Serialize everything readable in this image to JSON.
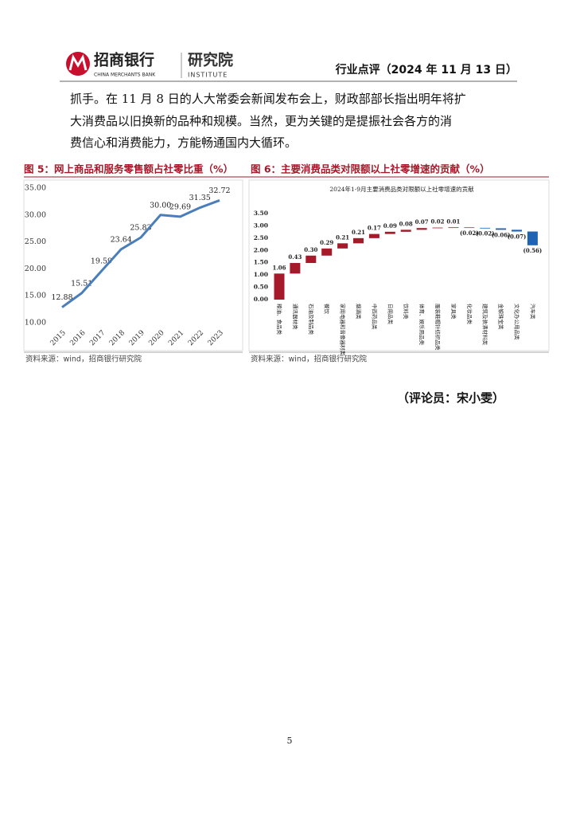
{
  "header": {
    "logo_name": "招商银行",
    "logo_sub": "CHINA MERCHANTS BANK",
    "institute": "研究院",
    "institute_sub": "INSTITUTE",
    "report": "行业点评（2024 年 11 月 13 日）"
  },
  "body": [
    "抓手。在 11 月 8 日的人大常委会新闻发布会上，财政部部长指出明年将扩",
    "大消费品以旧换新的品种和规模。当然，更为关键的是提振社会各方的消",
    "费信心和消费能力，方能畅通国内大循环。"
  ],
  "chart_data": [
    {
      "type": "line",
      "title": "图 5：网上商品和服务零售额占社零比重（%）",
      "categories": [
        "2015",
        "2016",
        "2017",
        "2018",
        "2019",
        "2020",
        "2021",
        "2022",
        "2023"
      ],
      "values": [
        12.88,
        15.51,
        19.59,
        23.64,
        25.83,
        30.0,
        29.69,
        31.35,
        32.72
      ],
      "value_labels": [
        "12.88",
        "15.51",
        "19.59",
        "23.64",
        "25.83",
        "30.00",
        "29.69",
        "31.35",
        "32.72"
      ],
      "color": "#4a7ebb",
      "grid": false,
      "ylim": [
        10,
        35
      ],
      "yticks": [
        {
          "value": 10,
          "label": "10.00"
        },
        {
          "value": 15,
          "label": "15.00"
        },
        {
          "value": 20,
          "label": "20.00"
        },
        {
          "value": 25,
          "label": "25.00"
        },
        {
          "value": 30,
          "label": "30.00"
        },
        {
          "value": 35,
          "label": "35.00"
        }
      ],
      "source": "资料来源：wind，招商银行研究院"
    },
    {
      "type": "waterfall",
      "title": "图 6：主要消费品类对限额以上社零增速的贡献（%）",
      "subtitle": "2024年1-9月主要消费品类对限额以上社零增速的贡献",
      "categories": [
        "粮油、食品类",
        "通讯器材类",
        "石油及制品类",
        "餐饮",
        "家用电器和音像器材类",
        "烟酒类",
        "中西药品类",
        "日用品类",
        "饮料类",
        "体育、娱乐用品类",
        "服装鞋帽针纺织品类",
        "家具类",
        "化妆品类",
        "建筑及装潢材料类",
        "金银珠宝类",
        "文化办公用品类",
        "汽车类"
      ],
      "values": [
        1.06,
        0.43,
        0.3,
        0.29,
        0.21,
        0.21,
        0.17,
        0.09,
        0.08,
        0.07,
        0.02,
        0.01,
        -0.02,
        -0.02,
        -0.06,
        -0.07,
        -0.56
      ],
      "value_labels": [
        "1.06",
        "0.43",
        "0.30",
        "0.29",
        "0.21",
        "0.21",
        "0.17",
        "0.09",
        "0.08",
        "0.07",
        "0.02",
        "0.01",
        "(0.02)",
        "(0.02)",
        "(0.06)",
        "(0.07)",
        "(0.56)"
      ],
      "colors": {
        "positive": "#a5192a",
        "negative": "#1f63b5"
      },
      "grid": false,
      "ylim": [
        0,
        3.5
      ],
      "yticks": [
        {
          "value": 0,
          "label": "0.00"
        },
        {
          "value": 0.5,
          "label": "0.50"
        },
        {
          "value": 1,
          "label": "1.00"
        },
        {
          "value": 1.5,
          "label": "1.50"
        },
        {
          "value": 2,
          "label": "2.00"
        },
        {
          "value": 2.5,
          "label": "2.50"
        },
        {
          "value": 3,
          "label": "3.00"
        },
        {
          "value": 3.5,
          "label": "3.50"
        }
      ],
      "source": "资料来源：wind，招商银行研究院"
    }
  ],
  "reviewer": "（评论员：宋小雯）",
  "page_number": "5"
}
